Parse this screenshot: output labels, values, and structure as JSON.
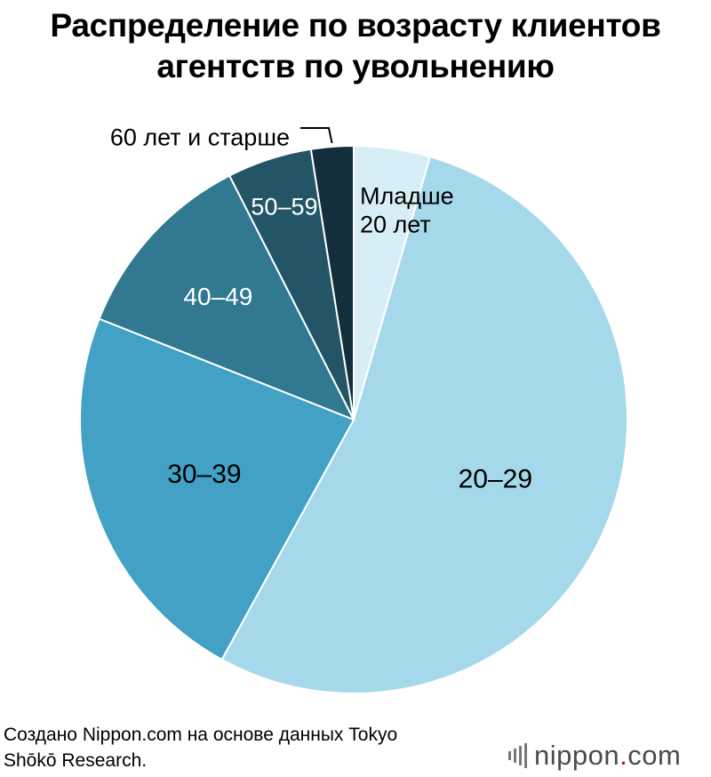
{
  "title_lines": [
    "Распределение по возрасту клиентов",
    "агентств по увольнению"
  ],
  "source_lines": [
    "Создано Nippon.com на основе данных Tokyo",
    "Shōkō Research."
  ],
  "logo": {
    "name": "nippon",
    "dot": ".",
    "tld": "com"
  },
  "chart_data": {
    "type": "pie",
    "title": "Распределение по возрасту клиентов агентств по увольнению",
    "slices": [
      {
        "label": [
          "Младше",
          "20 лет"
        ],
        "value": 4.5,
        "color": "#d8eef7",
        "text_color": "#000000"
      },
      {
        "label": [
          "20–29"
        ],
        "value": 53.5,
        "color": "#a4d8ea",
        "text_color": "#000000"
      },
      {
        "label": [
          "30–39"
        ],
        "value": 23.0,
        "color": "#42a1c5",
        "text_color": "#000000"
      },
      {
        "label": [
          "40–49"
        ],
        "value": 11.5,
        "color": "#317891",
        "text_color": "#ffffff"
      },
      {
        "label": [
          "50–59"
        ],
        "value": 5.0,
        "color": "#245567",
        "text_color": "#ffffff"
      },
      {
        "label": [
          "60 лет и старше"
        ],
        "value": 2.5,
        "color": "#142f3c",
        "text_color": "#000000"
      }
    ]
  }
}
